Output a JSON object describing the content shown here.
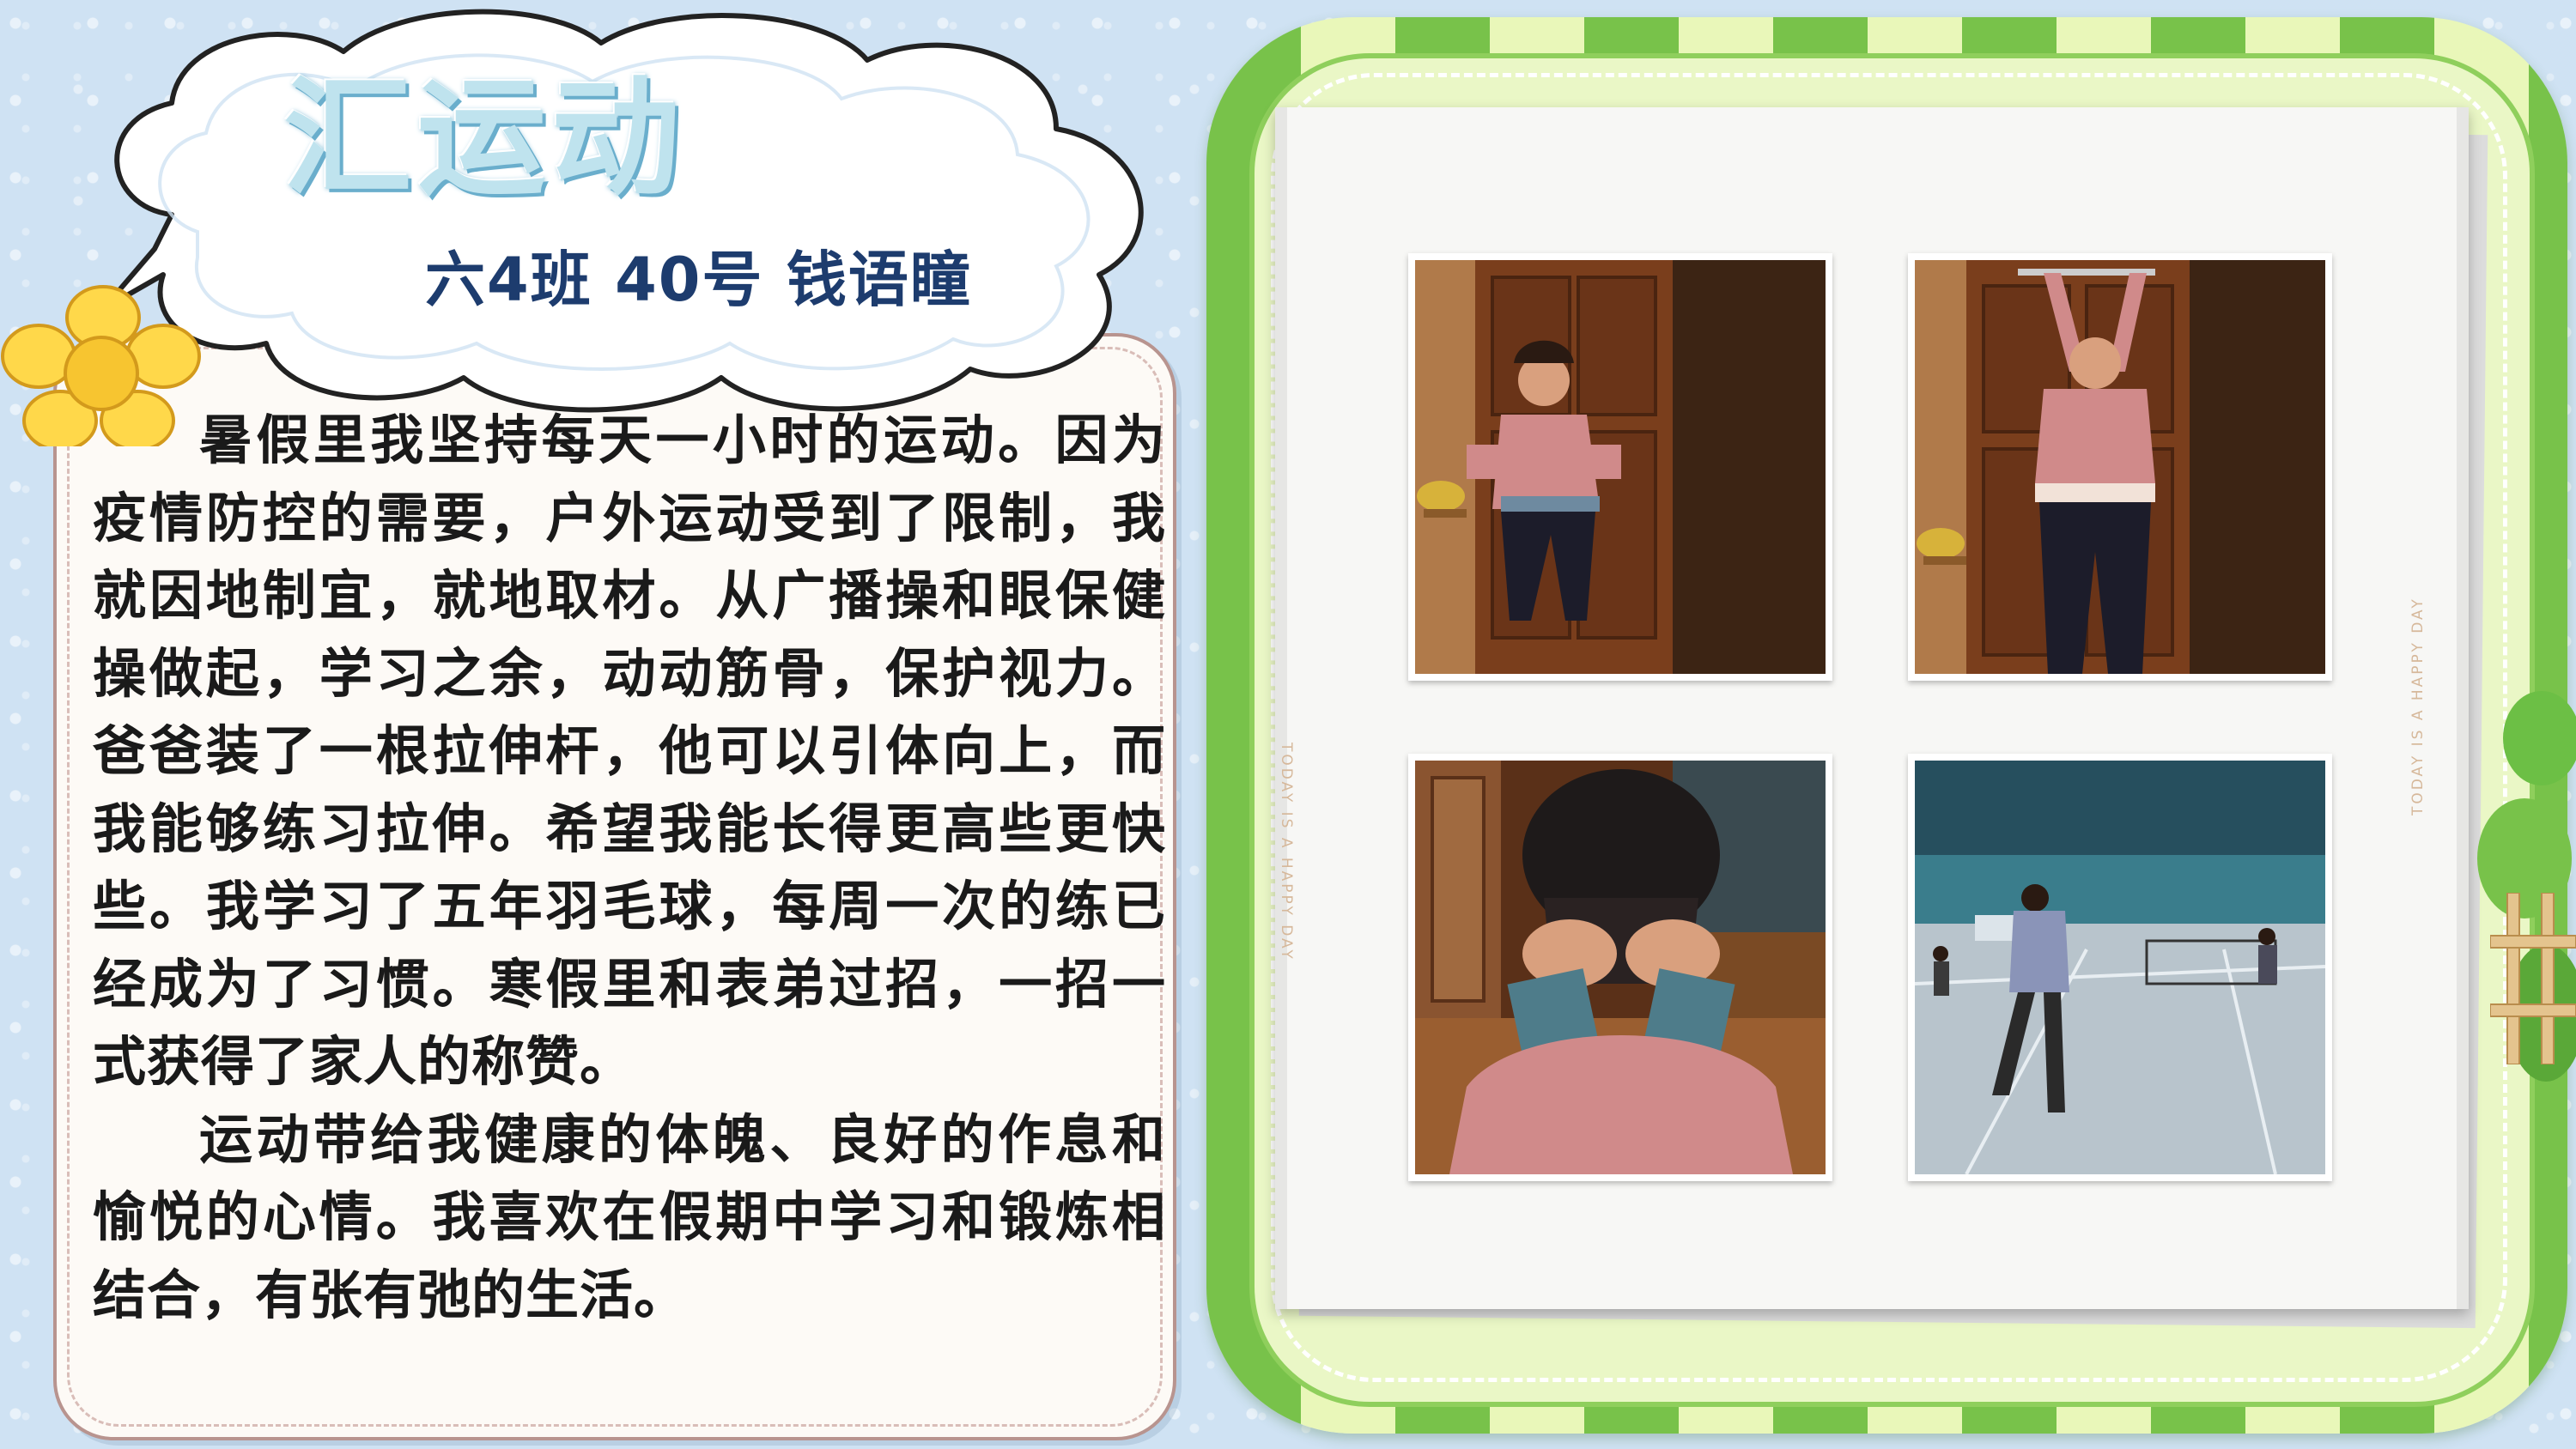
{
  "title": "汇运动",
  "subtitle": "六4班  40号 钱语瞳",
  "essay": {
    "paragraph_1": "暑假里我坚持每天一小时的运动。因为疫情防控的需要，户外运动受到了限制，我就因地制宜，就地取材。从广播操和眼保健操做起，学习之余，动动筋骨，保护视力。爸爸装了一根拉伸杆，他可以引体向上，而我能够练习拉伸。希望我能长得更高些更快些。我学习了五年羽毛球，每周一次的练已经成为了习惯。寒假里和表弟过招，一招一式获得了家人的称赞。",
    "paragraph_2": "运动带给我健康的体魄、良好的作息和愉悦的心情。我喜欢在假期中学习和锻炼相结合，有张有弛的生活。"
  },
  "album": {
    "caption_left": "TODAY IS A HAPPY DAY",
    "caption_right": "TODAY IS A HAPPY DAY"
  },
  "colors": {
    "background": "#cfe2f3",
    "frame_green": "#78c24a",
    "frame_light": "#e9f7b9",
    "title_fill": "#bfe3ee",
    "subtitle": "#1d3c6e",
    "text": "#1a1a1a"
  }
}
